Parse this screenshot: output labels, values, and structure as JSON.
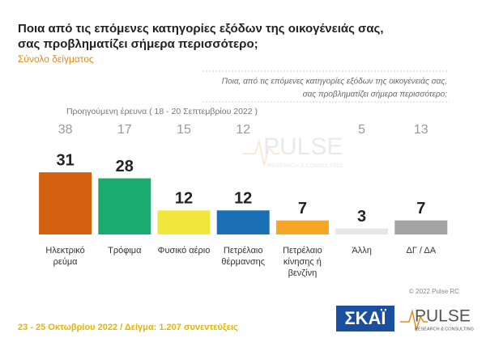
{
  "chart_data": {
    "type": "bar",
    "title": [
      "Ποια από τις επόμενες κατηγορίες εξόδων της οικογένειάς σας,",
      "σας προβληματίζει σήμερα περισσότερο;"
    ],
    "subtitle": "Σύνολο δείγματος",
    "question": [
      "Ποια, από τις επόμενες κατηγορίες εξόδων της οικογένειάς σας,",
      "σας προβληματίζει σήμερα περισσότερο;"
    ],
    "previous_label": "Προηγούμενη έρευνα  ( 18 - 20 Σεπτεμβρίου  2022 )",
    "categories": [
      "Ηλεκτρικό ρεύμα",
      "Τρόφιμα",
      "Φυσικό αέριο",
      "Πετρέλαιο θέρμανσης",
      "Πετρέλαιο κίνησης ή βενζίνη",
      "Άλλη",
      "ΔΓ / ΔΑ"
    ],
    "values": [
      31,
      28,
      12,
      12,
      7,
      3,
      7
    ],
    "colors": [
      "#d2600f",
      "#1aab6f",
      "#f0e63c",
      "#1a6fb5",
      "#f5a623",
      "#e6e6e6",
      "#a3a3a3"
    ],
    "previous_values": [
      38,
      17,
      15,
      12,
      null,
      5,
      13
    ],
    "footer": "23 - 25  Οκτωβρίου  2022  /  Δείγμα:  1.207 συνεντεύξεις",
    "copyright": "© 2022 Pulse RC",
    "logos": {
      "skai": "ΣΚΑΪ",
      "pulse": "PULSE",
      "pulse_tagline": "RESEARCH & CONSULTING"
    }
  }
}
